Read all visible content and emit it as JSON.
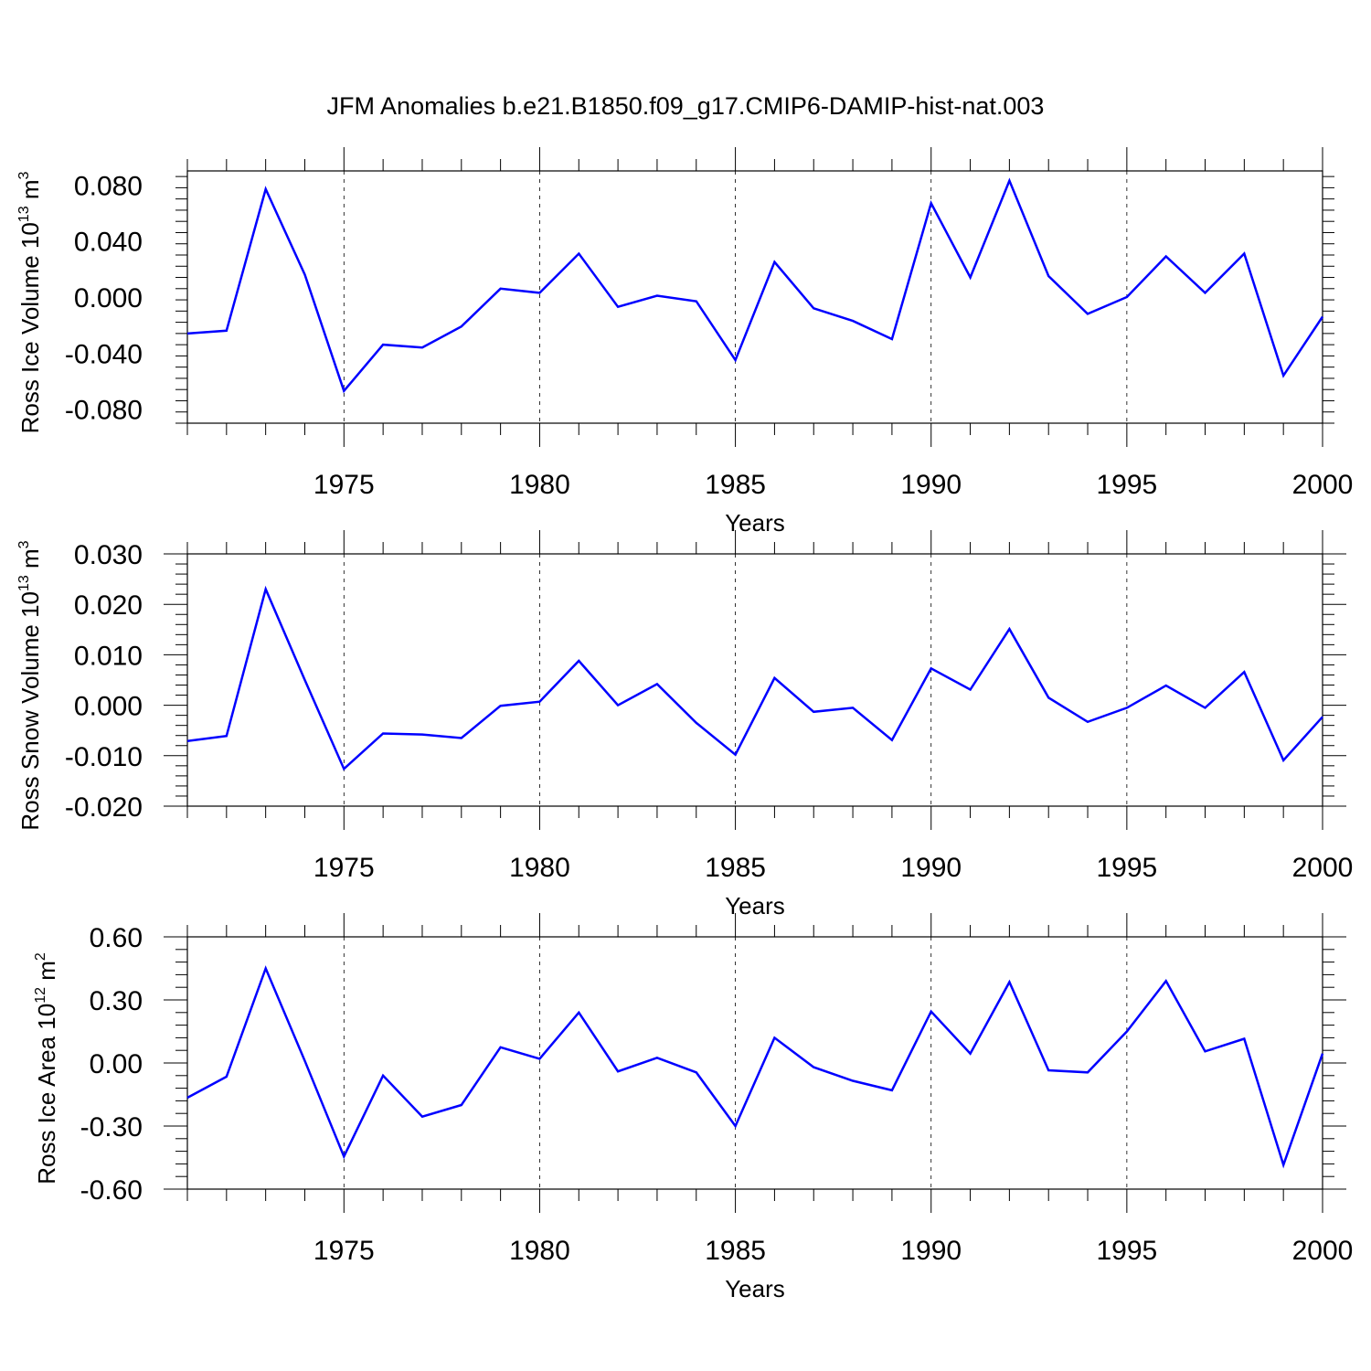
{
  "title": "JFM Anomalies b.e21.B1850.f09_g17.CMIP6-DAMIP-hist-nat.003",
  "line_color": "#0000ff",
  "chart_data": [
    {
      "type": "line",
      "ylabel_text": "Ross Ice Volume 10",
      "ylabel_exp": "13",
      "ylabel_unit": " m",
      "ylabel_unit_exp": "3",
      "xlabel": "Years",
      "xlim": [
        1971,
        2000
      ],
      "ylim": [
        -0.09,
        0.09
      ],
      "yticks": [
        0.08,
        0.04,
        0.0,
        -0.04,
        -0.08
      ],
      "ytick_labels": [
        "0.080",
        "0.040",
        "0.000",
        "-0.040",
        "-0.080"
      ],
      "xticks": [
        1975,
        1980,
        1985,
        1990,
        1995,
        2000
      ],
      "xtick_labels": [
        "1975",
        "1980",
        "1985",
        "1990",
        "1995",
        "2000"
      ],
      "x": [
        1971,
        1972,
        1973,
        1974,
        1975,
        1976,
        1977,
        1978,
        1979,
        1980,
        1981,
        1982,
        1983,
        1984,
        1985,
        1986,
        1987,
        1988,
        1989,
        1990,
        1991,
        1992,
        1993,
        1994,
        1995,
        1996,
        1997,
        1998,
        1999,
        2000
      ],
      "y": [
        -0.026,
        -0.024,
        0.077,
        0.016,
        -0.067,
        -0.034,
        -0.036,
        -0.021,
        0.006,
        0.003,
        0.031,
        -0.007,
        0.001,
        -0.003,
        -0.045,
        0.025,
        -0.008,
        -0.017,
        -0.03,
        0.067,
        0.014,
        0.083,
        0.015,
        -0.012,
        0.0,
        0.029,
        0.003,
        0.031,
        -0.056,
        -0.014
      ]
    },
    {
      "type": "line",
      "ylabel_text": "Ross Snow Volume 10",
      "ylabel_exp": "13",
      "ylabel_unit": " m",
      "ylabel_unit_exp": "3",
      "xlabel": "Years",
      "xlim": [
        1971,
        2000
      ],
      "ylim": [
        -0.02,
        0.03
      ],
      "yticks": [
        0.03,
        0.02,
        0.01,
        0.0,
        -0.01,
        -0.02
      ],
      "ytick_labels": [
        "0.030",
        "0.020",
        "0.010",
        "0.000",
        "-0.010",
        "-0.020"
      ],
      "xticks": [
        1975,
        1980,
        1985,
        1990,
        1995,
        2000
      ],
      "xtick_labels": [
        "1975",
        "1980",
        "1985",
        "1990",
        "1995",
        "2000"
      ],
      "x": [
        1971,
        1972,
        1973,
        1974,
        1975,
        1976,
        1977,
        1978,
        1979,
        1980,
        1981,
        1982,
        1983,
        1984,
        1985,
        1986,
        1987,
        1988,
        1989,
        1990,
        1991,
        1992,
        1993,
        1994,
        1995,
        1996,
        1997,
        1998,
        1999,
        2000
      ],
      "y": [
        -0.0071,
        -0.0061,
        0.023,
        0.005,
        -0.0126,
        -0.0056,
        -0.0058,
        -0.0065,
        -0.0001,
        0.0007,
        0.0088,
        0.0,
        0.0042,
        -0.0035,
        -0.0098,
        0.0054,
        -0.0013,
        -0.0005,
        -0.0069,
        0.0073,
        0.0031,
        0.0151,
        0.0015,
        -0.0033,
        -0.0005,
        0.0039,
        -0.0005,
        0.0066,
        -0.0109,
        -0.0023
      ]
    },
    {
      "type": "line",
      "ylabel_text": "Ross Ice Area 10",
      "ylabel_exp": "12",
      "ylabel_unit": " m",
      "ylabel_unit_exp": "2",
      "xlabel": "Years",
      "xlim": [
        1971,
        2000
      ],
      "ylim": [
        -0.6,
        0.6
      ],
      "yticks": [
        0.6,
        0.3,
        0.0,
        -0.3,
        -0.6
      ],
      "ytick_labels": [
        "0.60",
        "0.30",
        "0.00",
        "-0.30",
        "-0.60"
      ],
      "xticks": [
        1975,
        1980,
        1985,
        1990,
        1995,
        2000
      ],
      "xtick_labels": [
        "1975",
        "1980",
        "1985",
        "1990",
        "1995",
        "2000"
      ],
      "x": [
        1971,
        1972,
        1973,
        1974,
        1975,
        1976,
        1977,
        1978,
        1979,
        1980,
        1981,
        1982,
        1983,
        1984,
        1985,
        1986,
        1987,
        1988,
        1989,
        1990,
        1991,
        1992,
        1993,
        1994,
        1995,
        1996,
        1997,
        1998,
        1999,
        2000
      ],
      "y": [
        -0.165,
        -0.065,
        0.45,
        0.01,
        -0.445,
        -0.06,
        -0.255,
        -0.2,
        0.075,
        0.02,
        0.24,
        -0.04,
        0.025,
        -0.045,
        -0.3,
        0.12,
        -0.02,
        -0.085,
        -0.13,
        0.245,
        0.045,
        0.385,
        -0.035,
        -0.045,
        0.15,
        0.39,
        0.055,
        0.115,
        -0.485,
        0.045
      ]
    }
  ]
}
